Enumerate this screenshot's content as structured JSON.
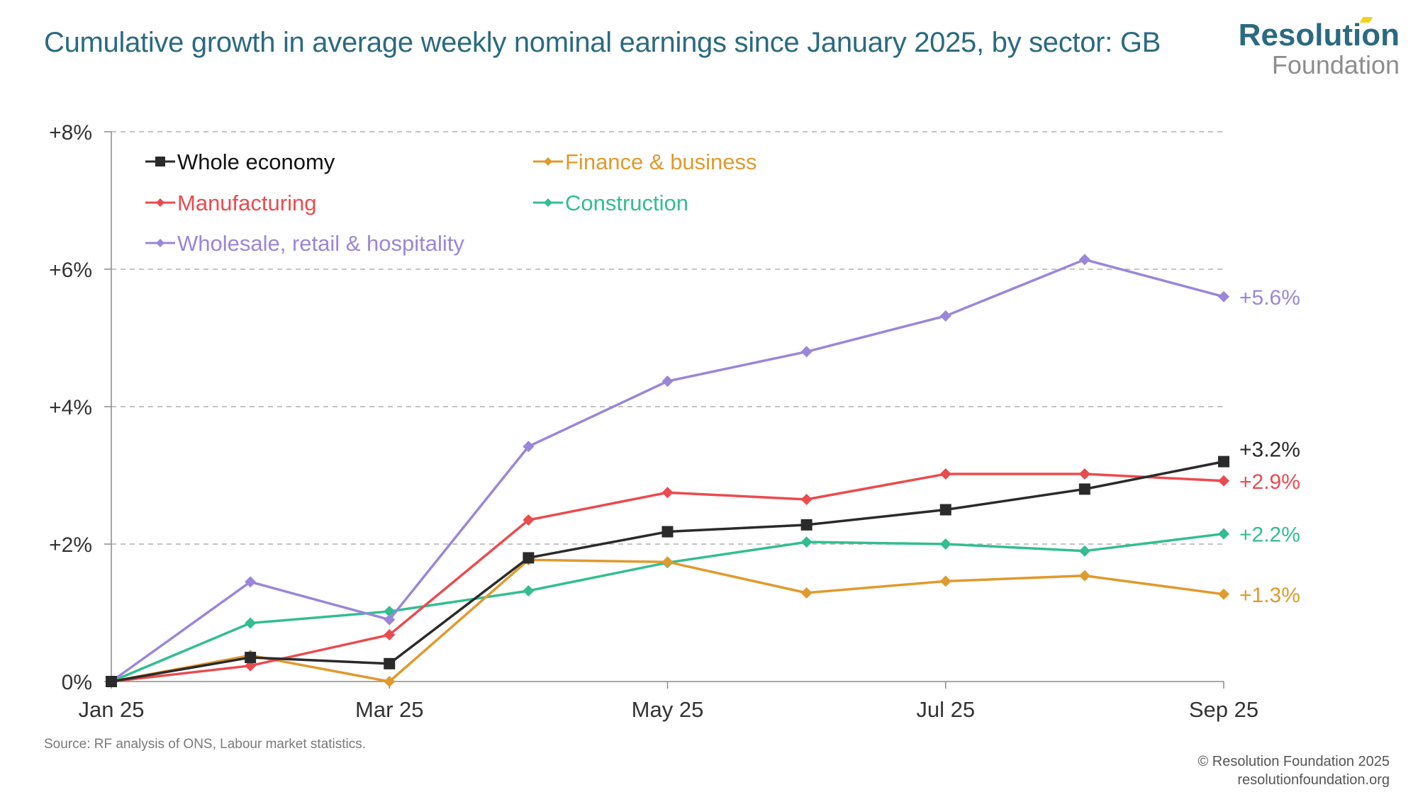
{
  "header": {
    "title": "Cumulative growth in average weekly nominal earnings since January 2025, by sector: GB",
    "logo_top": "Resolution",
    "logo_bottom": "Foundation"
  },
  "footer": {
    "source": "Source: RF analysis of ONS, Labour market statistics.",
    "copyright": "© Resolution Foundation 2025",
    "website": "resolutionfoundation.org"
  },
  "colors": {
    "title": "#2b6a80",
    "logo_accent": "#f2d21a",
    "grid": "#b0b0b0",
    "axis": "#8a8a8a"
  },
  "chart_data": {
    "type": "line",
    "title": "Cumulative growth in average weekly nominal earnings since January 2025, by sector: GB",
    "xlabel": "",
    "ylabel": "",
    "x": [
      "Jan 25",
      "Feb 25",
      "Mar 25",
      "Apr 25",
      "May 25",
      "Jun 25",
      "Jul 25",
      "Aug 25",
      "Sep 25"
    ],
    "x_tick_labels": [
      "Jan 25",
      "Mar 25",
      "May 25",
      "Jul 25",
      "Sep 25"
    ],
    "ylim": [
      0,
      8
    ],
    "y_ticks": [
      0,
      2,
      4,
      6,
      8
    ],
    "y_tick_labels": [
      "0%",
      "+2%",
      "+4%",
      "+6%",
      "+8%"
    ],
    "grid": true,
    "legend_position": "top-left",
    "series": [
      {
        "name": "Whole economy",
        "color": "#2a2a2a",
        "marker": "square",
        "values": [
          0,
          0.35,
          0.26,
          1.8,
          2.18,
          2.28,
          2.5,
          2.8,
          3.2
        ],
        "end_label": "+3.2%"
      },
      {
        "name": "Finance & business",
        "color": "#e09a2e",
        "marker": "diamond",
        "values": [
          0,
          0.38,
          0.0,
          1.77,
          1.74,
          1.29,
          1.46,
          1.54,
          1.27
        ],
        "end_label": "+1.3%"
      },
      {
        "name": "Manufacturing",
        "color": "#ea4b4f",
        "marker": "diamond",
        "values": [
          0,
          0.23,
          0.68,
          2.35,
          2.75,
          2.65,
          3.02,
          3.02,
          2.92
        ],
        "end_label": "+2.9%"
      },
      {
        "name": "Construction",
        "color": "#33bd91",
        "marker": "diamond",
        "values": [
          0,
          0.85,
          1.02,
          1.32,
          1.73,
          2.03,
          2.0,
          1.9,
          2.15
        ],
        "end_label": "+2.2%"
      },
      {
        "name": "Wholesale, retail & hospitality",
        "color": "#9b86d8",
        "marker": "diamond",
        "values": [
          0,
          1.45,
          0.9,
          3.42,
          4.37,
          4.8,
          5.32,
          6.14,
          5.6
        ],
        "end_label": "+5.6%"
      }
    ]
  }
}
